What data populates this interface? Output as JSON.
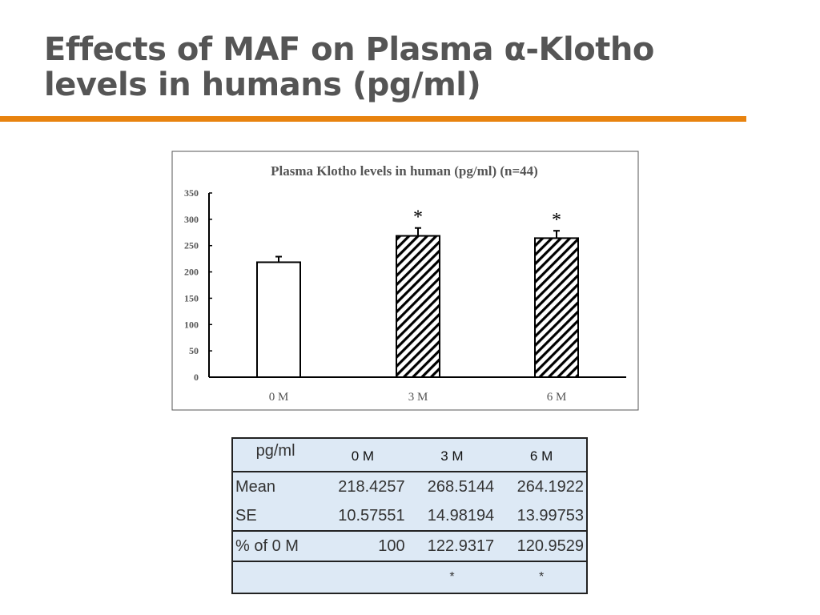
{
  "slide": {
    "title_line1": "Effects of MAF on Plasma α-Klotho",
    "title_line2": "levels in humans (pg/ml)",
    "accent": "#e8830f"
  },
  "chart_data": {
    "type": "bar",
    "title": "Plasma Klotho levels in human (pg/ml) (n=44)",
    "categories": [
      "0 M",
      "3 M",
      "6 M"
    ],
    "values": [
      218.4257,
      268.5144,
      264.1922
    ],
    "errors": [
      10.57551,
      14.98194,
      13.99753
    ],
    "significance": [
      "",
      "*",
      "*"
    ],
    "fills": [
      "open",
      "hatched",
      "hatched"
    ],
    "ylim": [
      0,
      350
    ],
    "yticks": [
      0,
      50,
      100,
      150,
      200,
      250,
      300,
      350
    ],
    "xlabel": "",
    "ylabel": "",
    "grid": false
  },
  "table": {
    "headers": [
      "pg/ml",
      "0 M",
      "3 M",
      "6 M"
    ],
    "rows": [
      [
        "Mean",
        "218.4257",
        "268.5144",
        "264.1922"
      ],
      [
        "SE",
        "10.57551",
        "14.98194",
        "13.99753"
      ],
      [
        "% of 0 M",
        "100",
        "122.9317",
        "120.9529"
      ],
      [
        "",
        "",
        "*",
        "*"
      ]
    ]
  }
}
